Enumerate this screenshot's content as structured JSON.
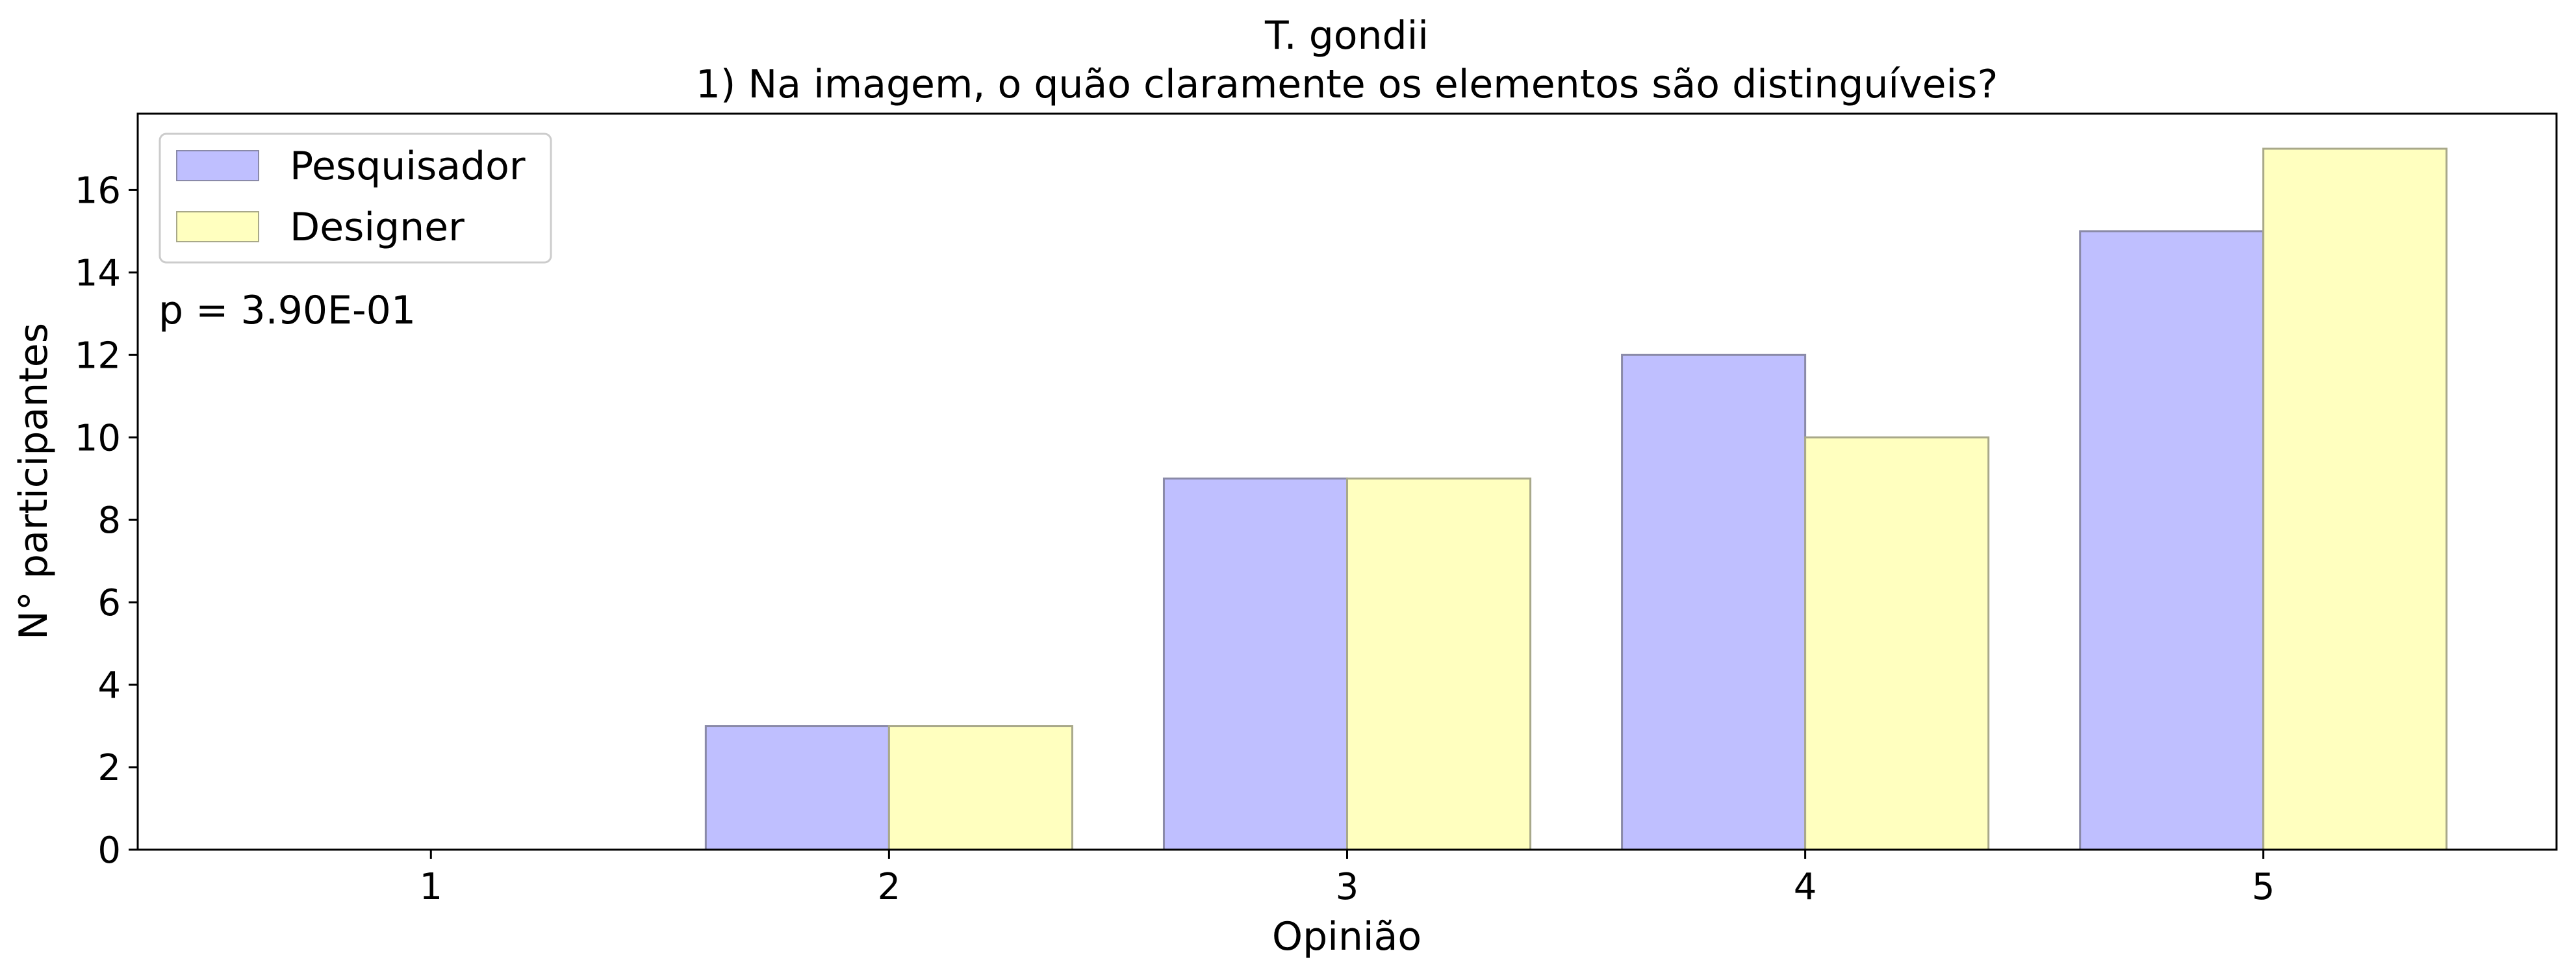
{
  "chart_data": {
    "type": "bar",
    "title_line1": "T. gondii",
    "title_line2": "1) Na imagem, o quão claramente os elementos são distinguíveis?",
    "xlabel": "Opinião",
    "ylabel": "N° participantes",
    "categories": [
      "1",
      "2",
      "3",
      "4",
      "5"
    ],
    "series": [
      {
        "name": "Pesquisador",
        "values": [
          0,
          3,
          9,
          12,
          15
        ],
        "color": "#bfbfff",
        "edge": "#8a8aa8"
      },
      {
        "name": "Designer",
        "values": [
          0,
          3,
          9,
          10,
          17
        ],
        "color": "#ffffbf",
        "edge": "#a8a88a"
      }
    ],
    "ylim": [
      0,
      17.85
    ],
    "yticks": [
      0,
      2,
      4,
      6,
      8,
      10,
      12,
      14,
      16
    ],
    "annotation": "p = 3.90E-01",
    "legend_position": "top-left",
    "grid": false
  }
}
